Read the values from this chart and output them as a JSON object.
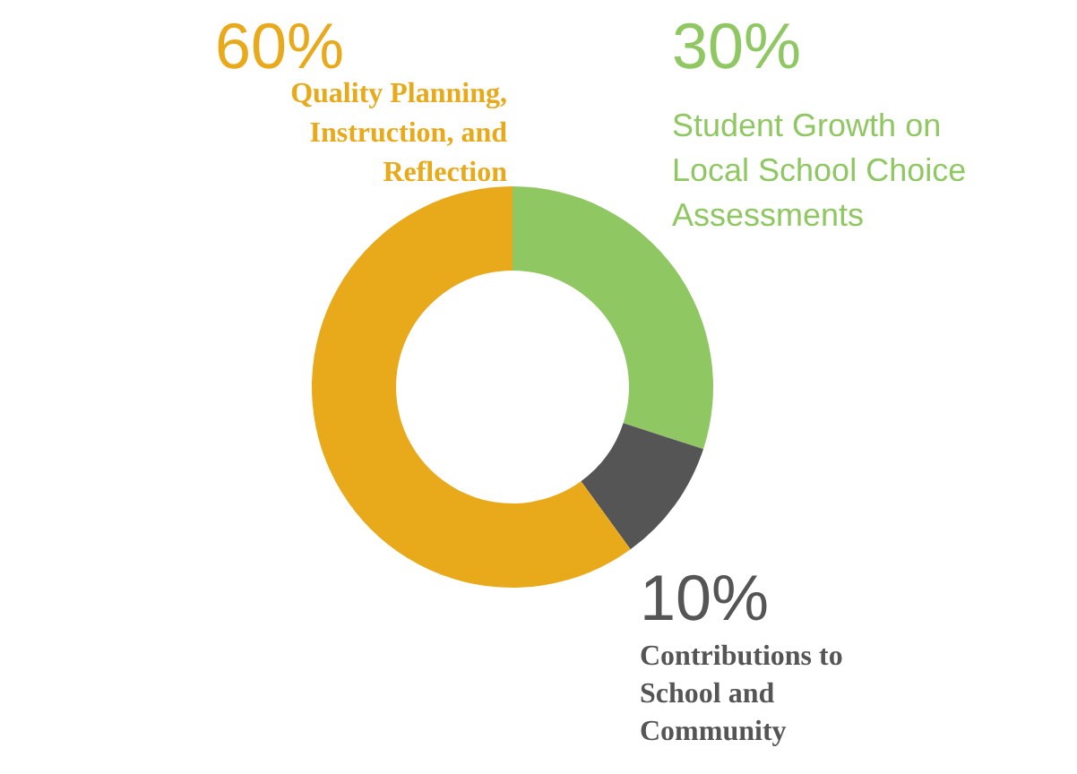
{
  "chart_data": {
    "type": "donut",
    "categories": [
      "Student Growth on Local School Choice Assessments",
      "Contributions to School and Community",
      "Quality Planning, Instruction, and Reflection"
    ],
    "values": [
      30,
      10,
      60
    ],
    "colors": [
      "#8fc862",
      "#555555",
      "#e8a91a"
    ],
    "value_labels": [
      "30%",
      "10%",
      "60%"
    ]
  }
}
